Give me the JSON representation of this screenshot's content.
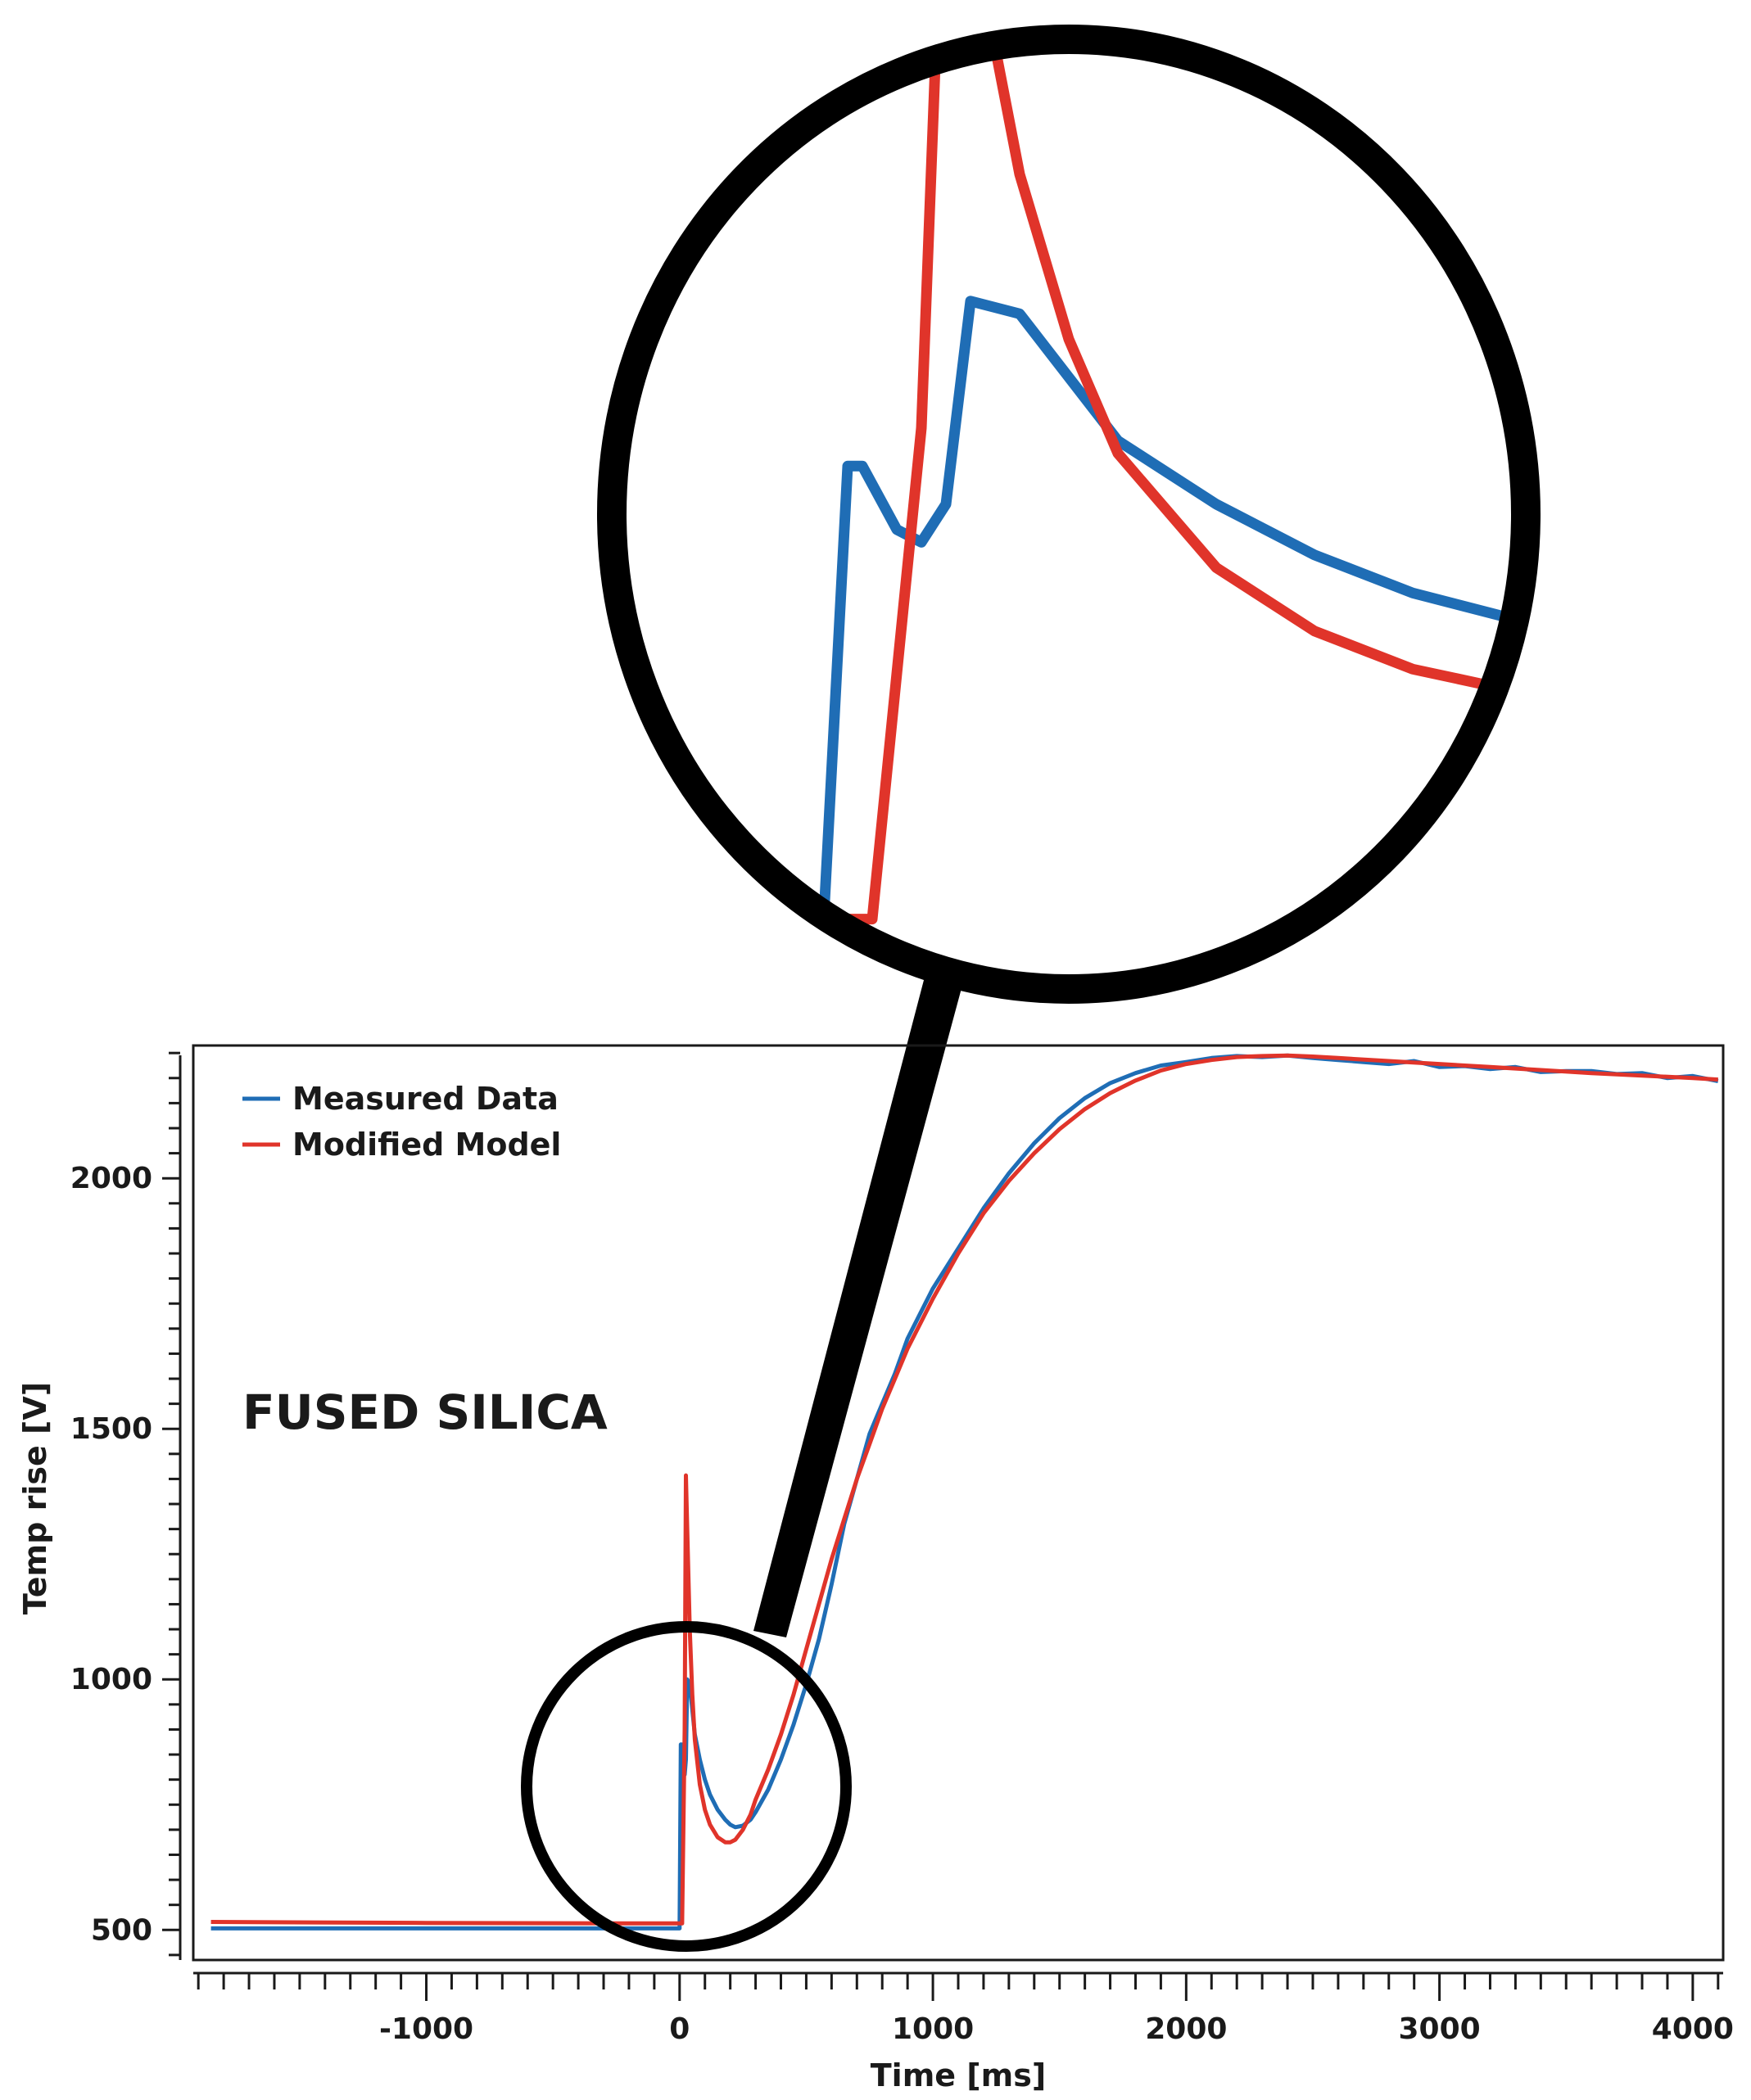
{
  "chart_data": {
    "type": "line",
    "title": "",
    "xlabel": "Time [ms]",
    "ylabel": "Temp rise [V]",
    "xlim": [
      -1920,
      4120
    ],
    "ylim": [
      440,
      2265
    ],
    "x_ticks": [
      -1000,
      0,
      1000,
      2000,
      3000,
      4000
    ],
    "x_tick_labels": [
      "-1000",
      "0",
      "1000",
      "2000",
      "3000",
      "4000"
    ],
    "y_ticks": [
      500,
      1000,
      1500,
      2000
    ],
    "y_tick_labels": [
      "500",
      "1000",
      "1500",
      "2000"
    ],
    "grid": false,
    "legend_position": "top-left",
    "annotation": "FUSED SILICA",
    "inset": "magnified view of the region around x = 0, y = 500–1400",
    "series": [
      {
        "name": "Measured Data",
        "color": "#1f6db5",
        "x": [
          -1850,
          -1000,
          -200,
          -20,
          0,
          5,
          8,
          15,
          20,
          25,
          30,
          40,
          50,
          60,
          80,
          100,
          120,
          150,
          180,
          200,
          220,
          250,
          280,
          300,
          350,
          400,
          450,
          500,
          550,
          600,
          650,
          700,
          750,
          800,
          850,
          900,
          950,
          1000,
          1100,
          1200,
          1300,
          1400,
          1500,
          1600,
          1700,
          1800,
          1900,
          2000,
          2100,
          2200,
          2300,
          2400,
          2500,
          2600,
          2700,
          2800,
          2900,
          3000,
          3100,
          3200,
          3300,
          3400,
          3500,
          3600,
          3700,
          3800,
          3900,
          4000,
          4100
        ],
        "y": [
          503,
          503,
          503,
          503,
          503,
          870,
          870,
          820,
          810,
          840,
          1000,
          990,
          940,
          890,
          840,
          800,
          770,
          740,
          720,
          710,
          705,
          708,
          720,
          735,
          780,
          840,
          910,
          990,
          1080,
          1190,
          1310,
          1400,
          1490,
          1550,
          1610,
          1680,
          1730,
          1780,
          1860,
          1940,
          2010,
          2070,
          2120,
          2160,
          2190,
          2210,
          2225,
          2232,
          2240,
          2244,
          2242,
          2245,
          2240,
          2236,
          2232,
          2228,
          2234,
          2222,
          2224,
          2218,
          2222,
          2212,
          2214,
          2214,
          2208,
          2210,
          2200,
          2204,
          2194
        ]
      },
      {
        "name": "Modified Model",
        "color": "#e0342a",
        "x": [
          -1850,
          -1000,
          -200,
          -20,
          0,
          10,
          20,
          25,
          30,
          40,
          50,
          60,
          80,
          100,
          120,
          150,
          180,
          200,
          220,
          250,
          280,
          300,
          350,
          400,
          450,
          500,
          550,
          600,
          650,
          700,
          750,
          800,
          850,
          900,
          950,
          1000,
          1100,
          1200,
          1300,
          1400,
          1500,
          1600,
          1700,
          1800,
          1900,
          2000,
          2100,
          2200,
          2300,
          2400,
          2500,
          2600,
          2800,
          3000,
          3200,
          3400,
          3600,
          3800,
          4000,
          4100
        ],
        "y": [
          516,
          514,
          513,
          513,
          513,
          513,
          900,
          1407,
          1300,
          1100,
          970,
          880,
          790,
          740,
          710,
          685,
          675,
          675,
          680,
          700,
          730,
          760,
          820,
          890,
          970,
          1060,
          1150,
          1240,
          1320,
          1400,
          1470,
          1540,
          1600,
          1660,
          1710,
          1760,
          1850,
          1930,
          1995,
          2050,
          2098,
          2138,
          2170,
          2195,
          2215,
          2228,
          2236,
          2242,
          2244,
          2245,
          2243,
          2240,
          2234,
          2228,
          2222,
          2216,
          2210,
          2205,
          2200,
          2197
        ]
      }
    ]
  }
}
